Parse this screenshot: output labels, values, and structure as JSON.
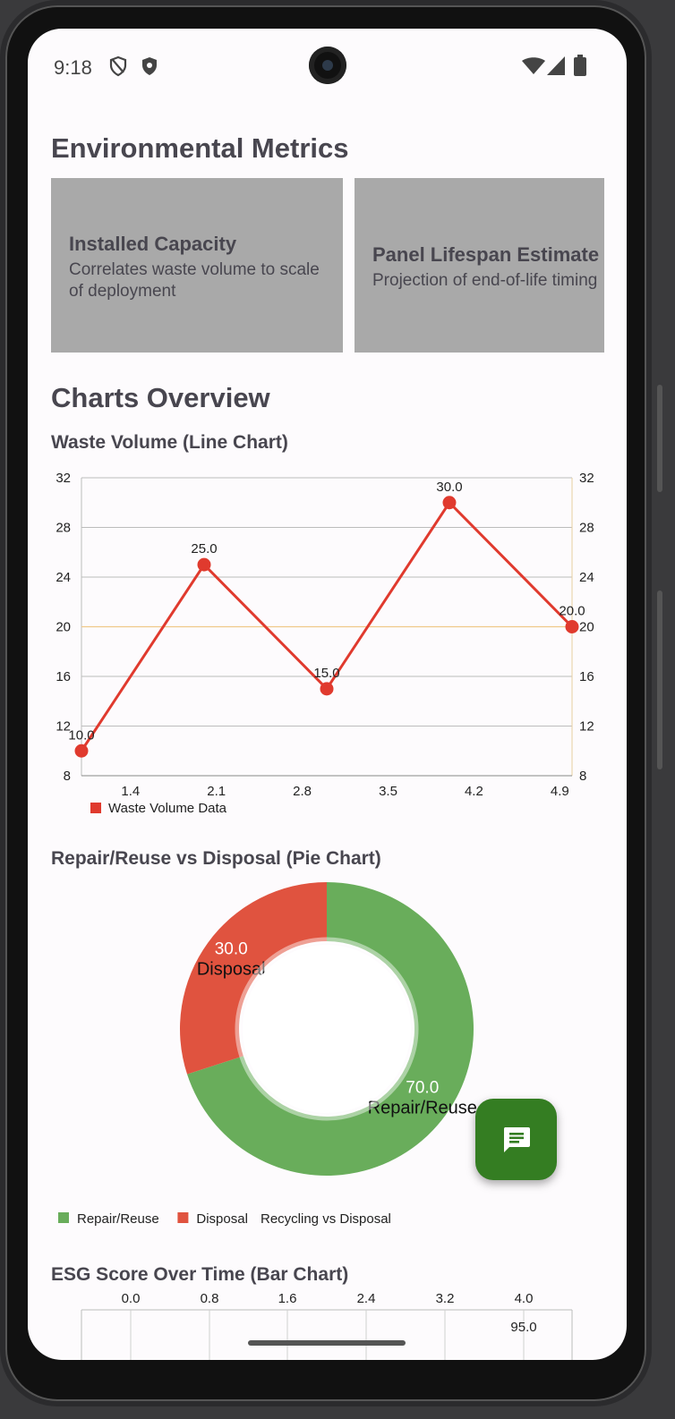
{
  "status_bar": {
    "time": "9:18"
  },
  "header": {
    "title": "Environmental Metrics"
  },
  "metric_cards": [
    {
      "title": "Installed Capacity",
      "description": "Correlates waste volume to scale of deployment"
    },
    {
      "title": "Panel Lifespan Estimate",
      "description": "Projection of end-of-life timing"
    }
  ],
  "charts_overview": {
    "title": "Charts Overview"
  },
  "chart_data": [
    {
      "type": "line",
      "title": "Waste Volume (Line Chart)",
      "x": [
        1.0,
        2.0,
        3.0,
        4.0,
        5.0
      ],
      "x_tick_labels": [
        "1.4",
        "2.1",
        "2.8",
        "3.5",
        "4.2",
        "4.9"
      ],
      "y_ticks": [
        8,
        12,
        16,
        20,
        24,
        28,
        32
      ],
      "ylim": [
        8,
        32
      ],
      "limit_line": 20,
      "series": [
        {
          "name": "Waste Volume Data",
          "values": [
            10.0,
            25.0,
            15.0,
            30.0,
            20.0
          ],
          "labels": [
            "10.0",
            "25.0",
            "15.0",
            "30.0",
            "20.0"
          ],
          "color": "#e03a2e"
        }
      ],
      "grid": true,
      "legend": "bottom-left",
      "dual_y_axis": true
    },
    {
      "type": "pie",
      "title": "Repair/Reuse vs Disposal (Pie Chart)",
      "donut": true,
      "slices": [
        {
          "name": "Repair/Reuse",
          "value": 70.0,
          "label": "70.0",
          "color": "#69ad5b"
        },
        {
          "name": "Disposal",
          "value": 30.0,
          "label": "30.0",
          "color": "#e0533f"
        }
      ],
      "legend": "bottom-left",
      "description": "Recycling vs Disposal"
    },
    {
      "type": "bar",
      "title": "ESG Score Over Time (Bar Chart)",
      "x_tick_labels": [
        "0.0",
        "0.8",
        "1.6",
        "2.4",
        "3.2",
        "4.0"
      ],
      "visible_value_labels": [
        "95.0"
      ]
    }
  ],
  "fab": {
    "icon": "chat-icon"
  },
  "colors": {
    "accent_green": "#347d22",
    "card_bg": "#a9a9a9",
    "line_red": "#e03a2e"
  }
}
